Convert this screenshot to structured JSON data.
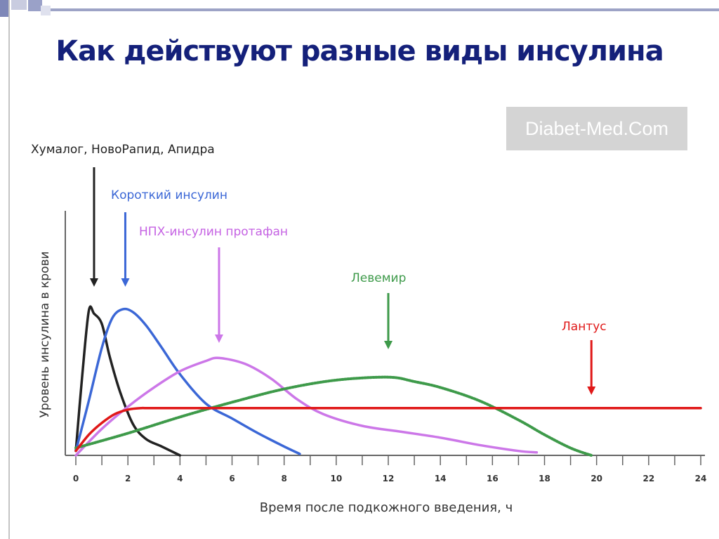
{
  "slide": {
    "title": "Как действуют разные виды инсулина",
    "watermark": "Diabet-Med.Com"
  },
  "chart_data": {
    "type": "line",
    "title": "Как действуют разные виды инсулина",
    "xlabel": "Время после подкожного введения, ч",
    "ylabel": "Уровень инсулина в крови",
    "xlim": [
      0,
      24
    ],
    "ylim": [
      0,
      1
    ],
    "y_unit": "relative level (unlabeled axis)",
    "x_ticks": [
      0,
      2,
      4,
      6,
      8,
      10,
      12,
      14,
      16,
      18,
      20,
      22,
      24
    ],
    "grid": false,
    "legend": "none (curves labeled by arrows)",
    "series": [
      {
        "name": "Хумалог, НовоРапид, Апидра",
        "color": "#222222",
        "style": "solid",
        "x": [
          0,
          0.25,
          0.5,
          0.7,
          1.0,
          1.3,
          1.7,
          2.2,
          2.7,
          3.3,
          4.0
        ],
        "y": [
          0.03,
          0.55,
          0.98,
          0.96,
          0.89,
          0.67,
          0.43,
          0.21,
          0.11,
          0.06,
          0.0
        ],
        "arrow_label": "Хумалог, НовоРапид, Апидра",
        "arrow_x": 0.7
      },
      {
        "name": "Короткий инсулин",
        "color": "#3b67d6",
        "style": "solid",
        "x": [
          0,
          0.5,
          1.0,
          1.4,
          1.8,
          2.2,
          2.7,
          3.3,
          4.0,
          5.0,
          6.0,
          7.0,
          8.0,
          8.6
        ],
        "y": [
          0.03,
          0.37,
          0.73,
          0.93,
          0.99,
          0.97,
          0.88,
          0.73,
          0.55,
          0.35,
          0.25,
          0.15,
          0.06,
          0.01
        ],
        "arrow_label": "Короткий инсулин",
        "arrow_x": 1.9
      },
      {
        "name": "НПХ-инсулин протафан",
        "color": "#cc77e8",
        "style": "solid",
        "x": [
          0,
          1.0,
          2.0,
          3.0,
          4.0,
          5.0,
          5.5,
          6.5,
          7.5,
          8.5,
          9.5,
          11.0,
          12.5,
          14.0,
          15.5,
          17.0,
          17.7
        ],
        "y": [
          0.0,
          0.18,
          0.33,
          0.46,
          0.57,
          0.64,
          0.66,
          0.62,
          0.52,
          0.38,
          0.28,
          0.2,
          0.16,
          0.12,
          0.07,
          0.03,
          0.02
        ],
        "arrow_label": "НПХ-инсулин протафан",
        "arrow_x": 5.5
      },
      {
        "name": "Левемир",
        "color": "#3e9a4a",
        "style": "dotted",
        "x": [
          0,
          2.0,
          4.0,
          6.0,
          8.0,
          10.0,
          12.0,
          13.0,
          14.0,
          15.5,
          17.0,
          18.0,
          19.0,
          19.8
        ],
        "y": [
          0.05,
          0.15,
          0.26,
          0.36,
          0.45,
          0.51,
          0.53,
          0.5,
          0.46,
          0.37,
          0.24,
          0.14,
          0.05,
          0.0
        ],
        "arrow_label": "Левемир",
        "arrow_x": 12.0
      },
      {
        "name": "Лантус",
        "color": "#e01818",
        "style": "solid",
        "x": [
          0,
          0.5,
          1.0,
          1.5,
          2.0,
          2.5,
          3.0,
          6.0,
          10.0,
          14.0,
          18.0,
          22.0,
          24.0
        ],
        "y": [
          0.03,
          0.14,
          0.22,
          0.28,
          0.31,
          0.32,
          0.32,
          0.32,
          0.32,
          0.32,
          0.32,
          0.32,
          0.32
        ],
        "arrow_label": "Лантус",
        "arrow_x": 19.8
      }
    ]
  }
}
